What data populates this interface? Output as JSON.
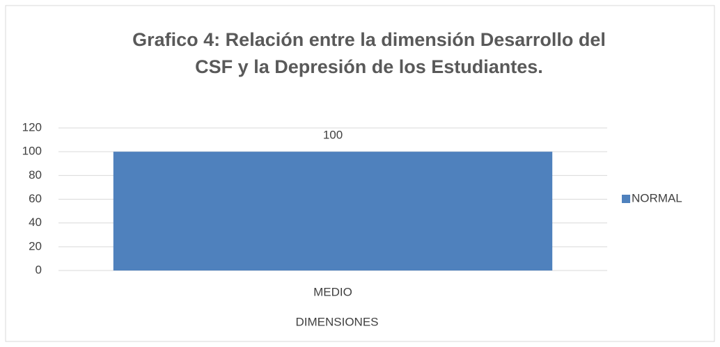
{
  "chart_data": {
    "type": "bar",
    "title": "Grafico 4: Relación entre la dimensión  Desarrollo del CSF y la Depresión de los Estudiantes.",
    "x_label": "DIMENSIONES",
    "categories": [
      "MEDIO"
    ],
    "series": [
      {
        "name": "NORMAL",
        "color": "#4f81bd",
        "values": [
          100
        ]
      }
    ],
    "ylim": [
      0,
      120
    ],
    "yticks": [
      0,
      20,
      40,
      60,
      80,
      100,
      120
    ],
    "grid": true,
    "legend": "right",
    "data_labels": true
  }
}
